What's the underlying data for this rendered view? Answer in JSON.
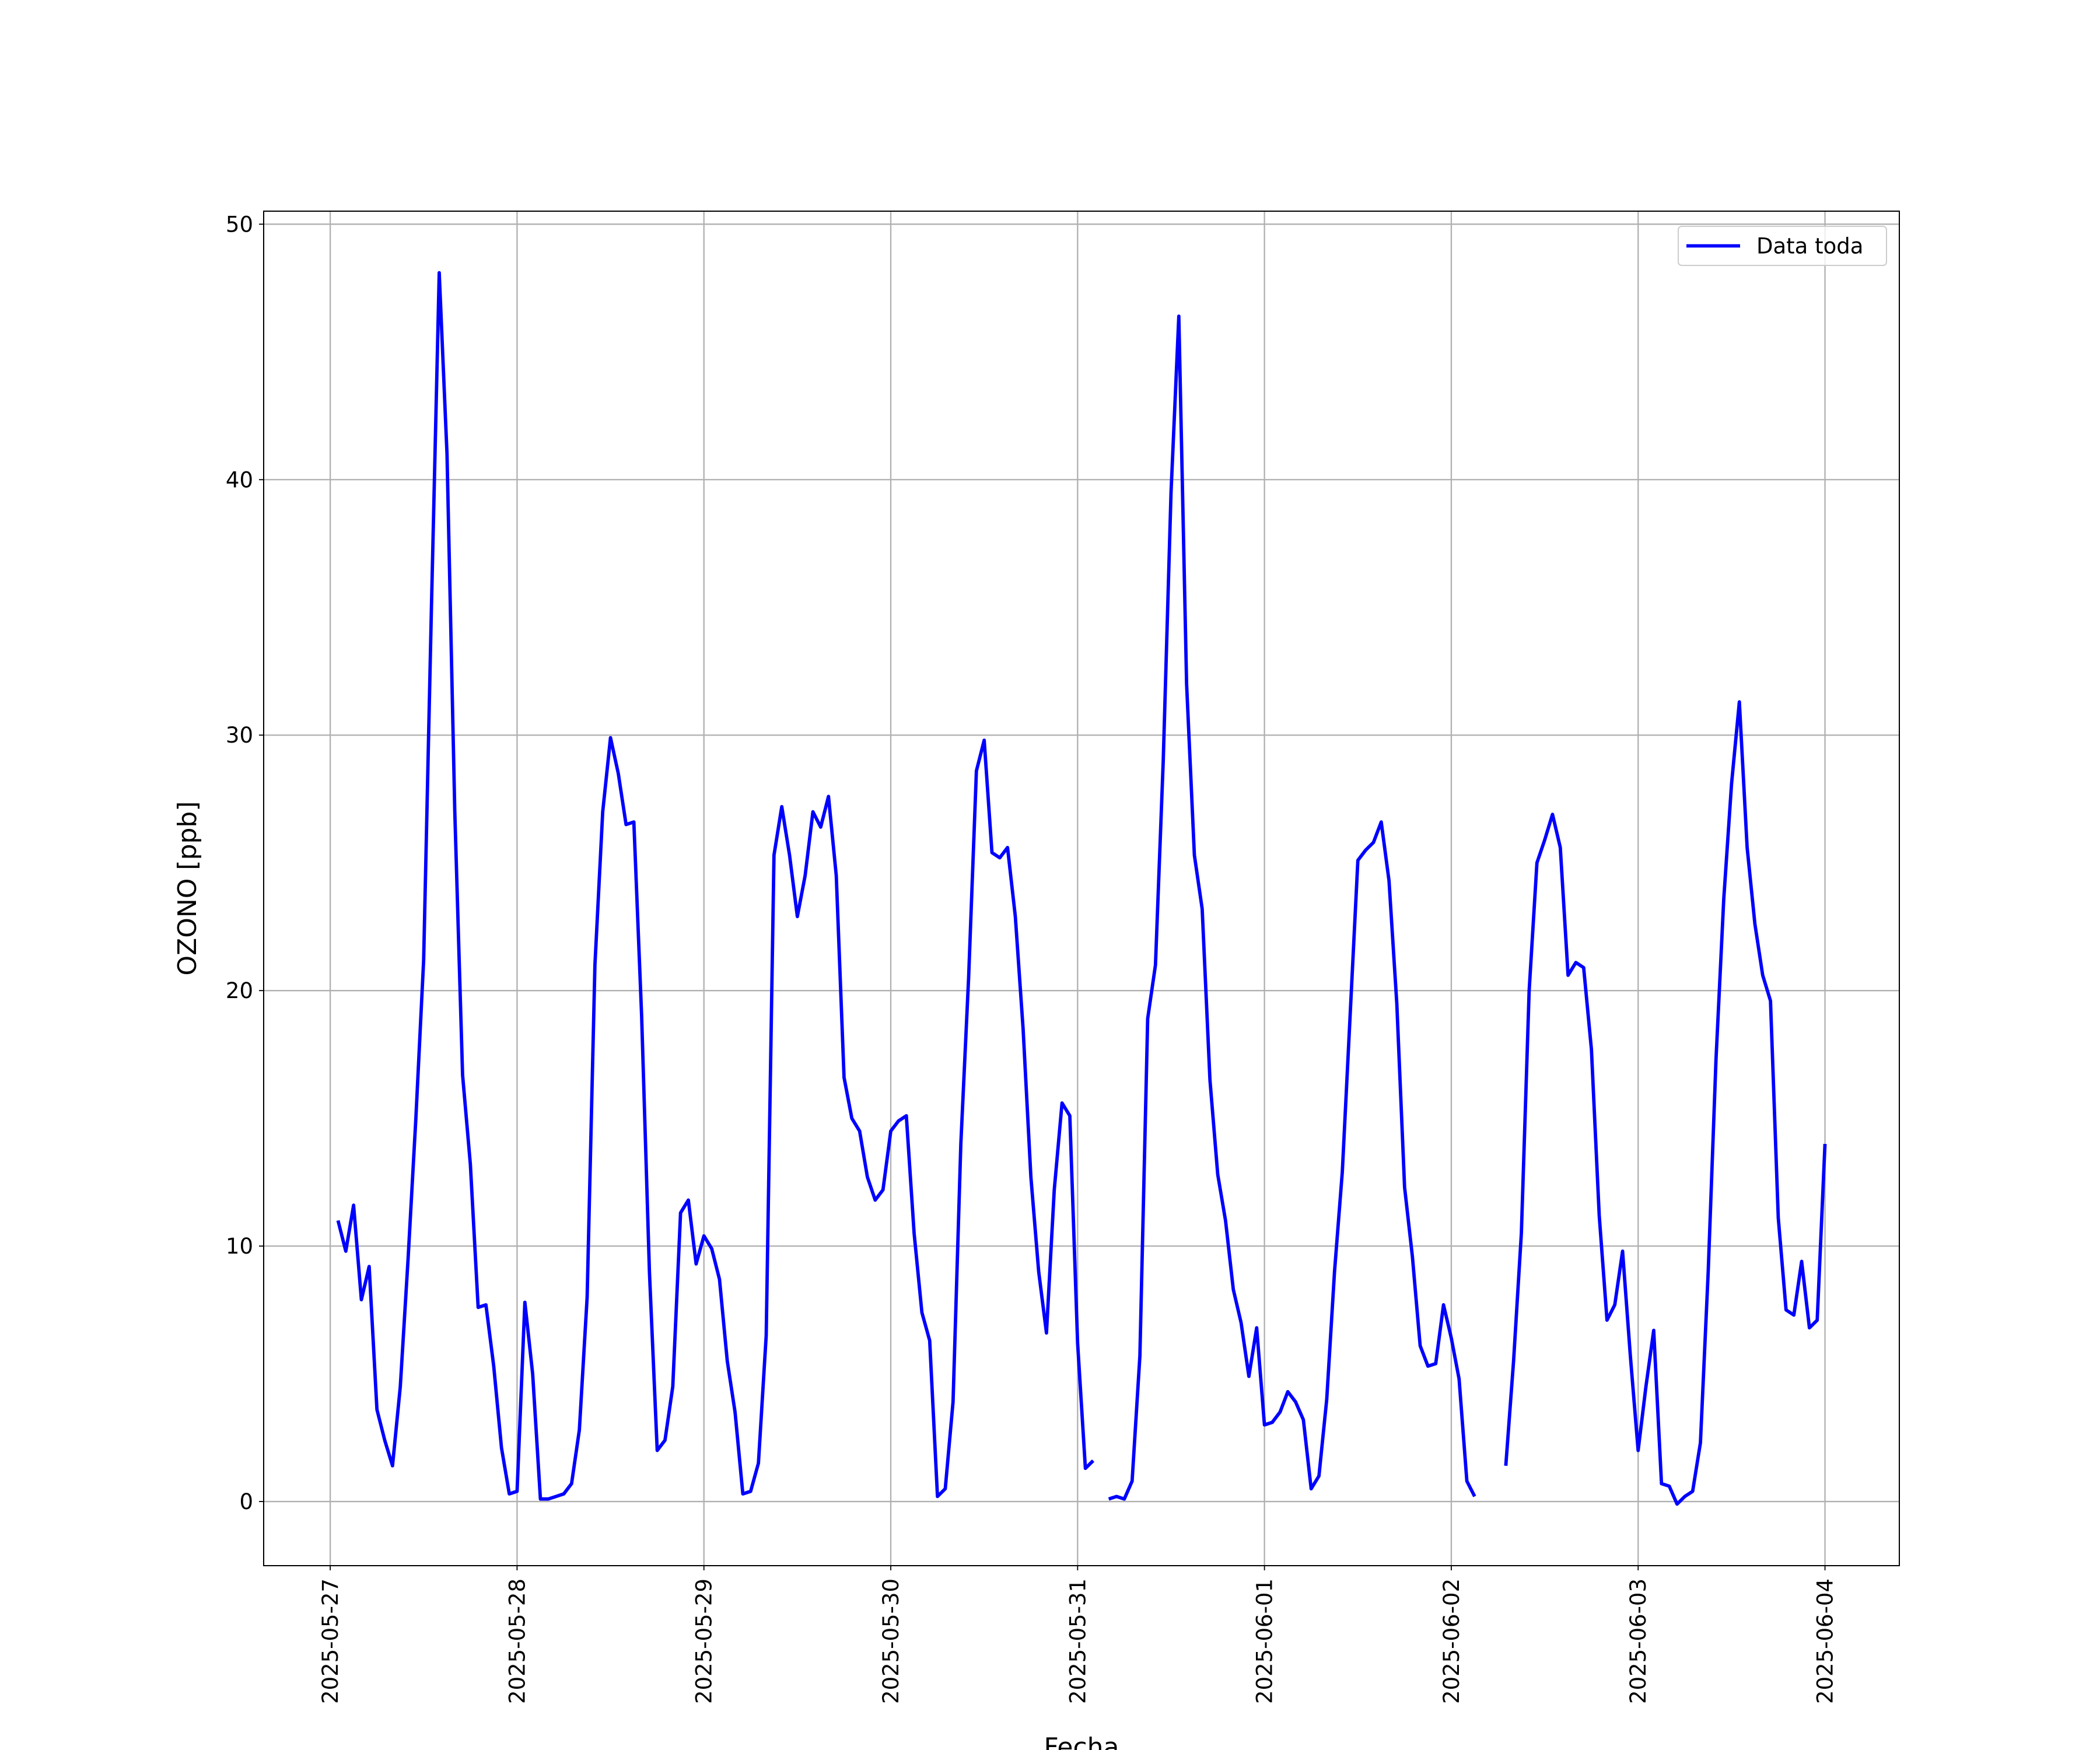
{
  "chart_data": {
    "type": "line",
    "xlabel": "Fecha",
    "ylabel": "OZONO [ppb]",
    "x": [
      "2025-05-27 01:00",
      "2025-05-27 02:00",
      "2025-05-27 03:00",
      "2025-05-27 04:00",
      "2025-05-27 05:00",
      "2025-05-27 06:00",
      "2025-05-27 07:00",
      "2025-05-27 08:00",
      "2025-05-27 09:00",
      "2025-05-27 10:00",
      "2025-05-27 11:00",
      "2025-05-27 12:00",
      "2025-05-27 13:00",
      "2025-05-27 14:00",
      "2025-05-27 15:00",
      "2025-05-27 16:00",
      "2025-05-27 17:00",
      "2025-05-27 18:00",
      "2025-05-27 19:00",
      "2025-05-27 20:00",
      "2025-05-27 21:00",
      "2025-05-27 22:00",
      "2025-05-27 23:00",
      "2025-05-28 00:00",
      "2025-05-28 01:00",
      "2025-05-28 02:00",
      "2025-05-28 03:00",
      "2025-05-28 04:00",
      "2025-05-28 05:00",
      "2025-05-28 06:00",
      "2025-05-28 07:00",
      "2025-05-28 08:00",
      "2025-05-28 09:00",
      "2025-05-28 10:00",
      "2025-05-28 11:00",
      "2025-05-28 12:00",
      "2025-05-28 13:00",
      "2025-05-28 14:00",
      "2025-05-28 15:00",
      "2025-05-28 16:00",
      "2025-05-28 17:00",
      "2025-05-28 18:00",
      "2025-05-28 19:00",
      "2025-05-28 20:00",
      "2025-05-28 21:00",
      "2025-05-28 22:00",
      "2025-05-28 23:00",
      "2025-05-29 00:00",
      "2025-05-29 01:00",
      "2025-05-29 02:00",
      "2025-05-29 03:00",
      "2025-05-29 04:00",
      "2025-05-29 05:00",
      "2025-05-29 06:00",
      "2025-05-29 07:00",
      "2025-05-29 08:00",
      "2025-05-29 09:00",
      "2025-05-29 10:00",
      "2025-05-29 11:00",
      "2025-05-29 12:00",
      "2025-05-29 13:00",
      "2025-05-29 14:00",
      "2025-05-29 15:00",
      "2025-05-29 16:00",
      "2025-05-29 17:00",
      "2025-05-29 18:00",
      "2025-05-29 19:00",
      "2025-05-29 20:00",
      "2025-05-29 21:00",
      "2025-05-29 22:00",
      "2025-05-29 23:00",
      "2025-05-30 00:00",
      "2025-05-30 01:00",
      "2025-05-30 02:00",
      "2025-05-30 03:00",
      "2025-05-30 04:00",
      "2025-05-30 05:00",
      "2025-05-30 06:00",
      "2025-05-30 07:00",
      "2025-05-30 08:00",
      "2025-05-30 09:00",
      "2025-05-30 10:00",
      "2025-05-30 11:00",
      "2025-05-30 12:00",
      "2025-05-30 13:00",
      "2025-05-30 14:00",
      "2025-05-30 15:00",
      "2025-05-30 16:00",
      "2025-05-30 17:00",
      "2025-05-30 18:00",
      "2025-05-30 19:00",
      "2025-05-30 20:00",
      "2025-05-30 21:00",
      "2025-05-30 22:00",
      "2025-05-30 23:00",
      "2025-05-31 00:00",
      "2025-05-31 01:00",
      "2025-05-31 02:00",
      "2025-05-31 03:00",
      "2025-05-31 04:00",
      "2025-05-31 05:00",
      "2025-05-31 06:00",
      "2025-05-31 07:00",
      "2025-05-31 08:00",
      "2025-05-31 09:00",
      "2025-05-31 10:00",
      "2025-05-31 11:00",
      "2025-05-31 12:00",
      "2025-05-31 13:00",
      "2025-05-31 14:00",
      "2025-05-31 15:00",
      "2025-05-31 16:00",
      "2025-05-31 17:00",
      "2025-05-31 18:00",
      "2025-05-31 19:00",
      "2025-05-31 20:00",
      "2025-05-31 21:00",
      "2025-05-31 22:00",
      "2025-05-31 23:00",
      "2025-06-01 00:00",
      "2025-06-01 01:00",
      "2025-06-01 02:00",
      "2025-06-01 03:00",
      "2025-06-01 04:00",
      "2025-06-01 05:00",
      "2025-06-01 06:00",
      "2025-06-01 07:00",
      "2025-06-01 08:00",
      "2025-06-01 09:00",
      "2025-06-01 10:00",
      "2025-06-01 11:00",
      "2025-06-01 12:00",
      "2025-06-01 13:00",
      "2025-06-01 14:00",
      "2025-06-01 15:00",
      "2025-06-01 16:00",
      "2025-06-01 17:00",
      "2025-06-01 18:00",
      "2025-06-01 19:00",
      "2025-06-01 20:00",
      "2025-06-01 21:00",
      "2025-06-01 22:00",
      "2025-06-01 23:00",
      "2025-06-02 00:00",
      "2025-06-02 01:00",
      "2025-06-02 02:00",
      "2025-06-02 03:00",
      "2025-06-02 04:00",
      "2025-06-02 05:00",
      "2025-06-02 06:00",
      "2025-06-02 07:00",
      "2025-06-02 08:00",
      "2025-06-02 09:00",
      "2025-06-02 10:00",
      "2025-06-02 11:00",
      "2025-06-02 12:00",
      "2025-06-02 13:00",
      "2025-06-02 14:00",
      "2025-06-02 15:00",
      "2025-06-02 16:00",
      "2025-06-02 17:00",
      "2025-06-02 18:00",
      "2025-06-02 19:00",
      "2025-06-02 20:00",
      "2025-06-02 21:00",
      "2025-06-02 22:00",
      "2025-06-02 23:00",
      "2025-06-03 00:00",
      "2025-06-03 01:00",
      "2025-06-03 02:00",
      "2025-06-03 03:00",
      "2025-06-03 04:00",
      "2025-06-03 05:00",
      "2025-06-03 06:00",
      "2025-06-03 07:00",
      "2025-06-03 08:00",
      "2025-06-03 09:00",
      "2025-06-03 10:00",
      "2025-06-03 11:00",
      "2025-06-03 12:00",
      "2025-06-03 13:00",
      "2025-06-03 14:00",
      "2025-06-03 15:00",
      "2025-06-03 16:00",
      "2025-06-03 17:00",
      "2025-06-03 18:00",
      "2025-06-03 19:00",
      "2025-06-03 20:00",
      "2025-06-03 21:00",
      "2025-06-03 22:00",
      "2025-06-03 23:00",
      "2025-06-04 00:00"
    ],
    "series": [
      {
        "name": "Data toda",
        "color": "#0000ff",
        "values": [
          11,
          9.8,
          11.6,
          7.9,
          9.2,
          3.6,
          2.4,
          1.4,
          4.5,
          9.5,
          15,
          21.2,
          35,
          48.1,
          41,
          27,
          16.7,
          13.2,
          7.6,
          7.7,
          5.3,
          2.1,
          0.3,
          0.4,
          7.8,
          5.0,
          0.1,
          0.1,
          0.2,
          0.3,
          0.7,
          2.8,
          8,
          21,
          27,
          29.9,
          28.5,
          26.5,
          26.6,
          19,
          9,
          2.0,
          2.4,
          4.5,
          11.3,
          11.8,
          9.3,
          10.4,
          9.9,
          8.7,
          5.5,
          3.5,
          0.3,
          0.4,
          1.5,
          6.5,
          25.3,
          27.2,
          25.3,
          22.9,
          24.5,
          27,
          26.4,
          27.6,
          24.5,
          16.6,
          15,
          14.5,
          12.7,
          11.8,
          12.2,
          14.5,
          14.9,
          15.1,
          10.5,
          7.4,
          6.3,
          0.2,
          0.5,
          3.9,
          14,
          20.5,
          28.6,
          29.8,
          25.4,
          25.2,
          25.6,
          22.9,
          18.5,
          12.7,
          9,
          6.6,
          12.2,
          15.6,
          15.1,
          6.2,
          1.3,
          1.6,
          null,
          0.1,
          0.2,
          0.1,
          0.8,
          5.7,
          18.9,
          21,
          29,
          39.5,
          46.4,
          32,
          25.3,
          23.2,
          16.5,
          12.8,
          11,
          8.3,
          7.0,
          4.9,
          6.8,
          3.0,
          3.1,
          3.5,
          4.3,
          3.9,
          3.2,
          0.5,
          1.0,
          4.0,
          9.0,
          12.9,
          19,
          25.1,
          25.5,
          25.8,
          26.6,
          24.3,
          19.5,
          12.3,
          9.6,
          6.1,
          5.3,
          5.4,
          7.7,
          6.4,
          4.8,
          0.8,
          0.2,
          null,
          null,
          null,
          1.4,
          5.5,
          10.5,
          20,
          25,
          25.9,
          26.9,
          25.6,
          20.6,
          21.1,
          20.9,
          17.7,
          11.2,
          7.1,
          7.7,
          9.8,
          5.7,
          2.0,
          4.5,
          6.7,
          0.7,
          0.6,
          -0.1,
          0.2,
          0.4,
          2.3,
          9.0,
          17.3,
          23.6,
          28.1,
          31.3,
          25.6,
          22.6,
          20.6,
          19.6,
          11.1,
          7.5,
          7.3,
          9.4,
          6.8,
          7.1,
          14.0
        ]
      }
    ],
    "xlim": [
      "2025-05-26 15:27",
      "2025-06-04 09:33"
    ],
    "xticks": [
      "2025-05-27",
      "2025-05-28",
      "2025-05-29",
      "2025-05-30",
      "2025-05-31",
      "2025-06-01",
      "2025-06-02",
      "2025-06-03",
      "2025-06-04"
    ],
    "ylim": [
      -2.51,
      50.51
    ],
    "yticks": [
      0,
      10,
      20,
      30,
      40,
      50
    ],
    "grid": true,
    "legend": "upper right"
  }
}
